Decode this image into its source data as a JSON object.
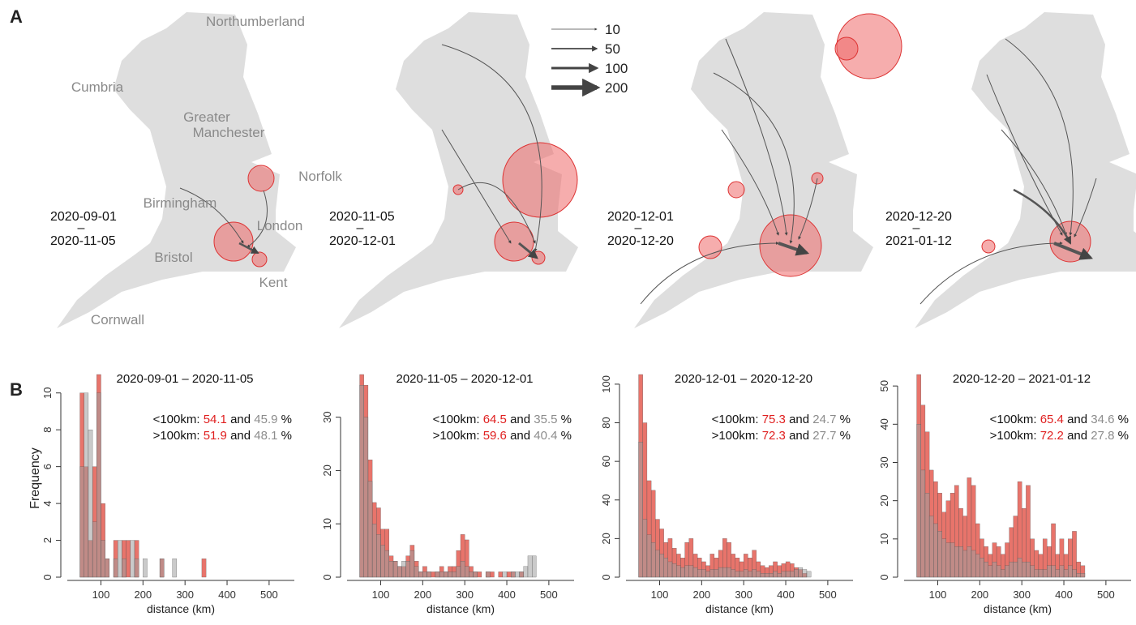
{
  "panel_labels": [
    "A",
    "B"
  ],
  "maps": {
    "regions": [
      "Northumberland",
      "Cumbria",
      "Greater",
      "Manchester",
      "Norfolk",
      "Birmingham",
      "London",
      "Bristol",
      "Kent",
      "Cornwall"
    ],
    "periods": [
      {
        "start": "2020-09-01",
        "end": "2020-11-05"
      },
      {
        "start": "2020-11-05",
        "end": "2020-12-01"
      },
      {
        "start": "2020-12-01",
        "end": "2020-12-20"
      },
      {
        "start": "2020-12-20",
        "end": "2021-01-12"
      }
    ],
    "separator": "–",
    "legend": [
      10,
      50,
      100,
      200
    ]
  },
  "y_label": "Frequency",
  "chart_data": [
    {
      "type": "histogram",
      "title": "2020-09-01 – 2020-11-05",
      "x_label": "distance (km)",
      "bins": [
        50,
        60,
        70,
        80,
        90,
        100,
        110,
        120,
        130,
        140,
        150,
        160,
        170,
        180,
        190,
        200,
        210,
        220,
        230,
        240,
        250,
        260,
        270,
        280,
        290,
        300,
        310,
        320,
        330,
        340,
        350,
        360,
        370,
        380,
        390,
        400,
        410,
        420,
        430,
        440,
        450,
        460,
        470
      ],
      "series": [
        {
          "color": "#e0453a",
          "values": [
            10,
            6,
            2,
            6,
            11,
            4,
            1,
            0,
            2,
            0,
            2,
            2,
            0,
            2,
            0,
            0,
            0,
            0,
            0,
            1,
            0,
            0,
            0,
            0,
            0,
            0,
            0,
            0,
            0,
            1,
            0,
            0,
            0,
            0,
            0,
            0,
            0,
            0,
            0,
            0,
            0,
            0
          ]
        },
        {
          "color": "#9e9e9e",
          "values": [
            6,
            10,
            8,
            3,
            10,
            2,
            1,
            0,
            1,
            2,
            1,
            0,
            2,
            1,
            0,
            1,
            0,
            0,
            0,
            1,
            0,
            0,
            1,
            0,
            0,
            0,
            0,
            0,
            0,
            0,
            0,
            0,
            0,
            0,
            0,
            0,
            0,
            0,
            0,
            0,
            0,
            0
          ]
        }
      ],
      "xlim": [
        20,
        560
      ],
      "xticks": [
        100,
        200,
        300,
        400,
        500
      ],
      "ylim": [
        0,
        11
      ],
      "yticks": [
        0,
        2,
        4,
        6,
        8,
        10
      ],
      "annotation_colors": [
        "#e02020",
        "#8c8c8c"
      ],
      "annotations": [
        {
          "prefix": "<100km:",
          "a": 54.1,
          "joiner": "and",
          "b": 45.9,
          "suffix": "%"
        },
        {
          "prefix": ">100km:",
          "a": 51.9,
          "joiner": "and",
          "b": 48.1,
          "suffix": "%"
        }
      ]
    },
    {
      "type": "histogram",
      "title": "2020-11-05 – 2020-12-01",
      "x_label": "distance (km)",
      "bins": [
        50,
        60,
        70,
        80,
        90,
        100,
        110,
        120,
        130,
        140,
        150,
        160,
        170,
        180,
        190,
        200,
        210,
        220,
        230,
        240,
        250,
        260,
        270,
        280,
        290,
        300,
        310,
        320,
        330,
        340,
        350,
        360,
        370,
        380,
        390,
        400,
        410,
        420,
        430,
        440,
        450,
        460,
        470
      ],
      "series": [
        {
          "color": "#e0453a",
          "values": [
            38,
            36,
            22,
            14,
            13,
            9,
            9,
            4,
            3,
            2,
            2,
            4,
            6,
            3,
            1,
            2,
            1,
            1,
            1,
            2,
            1,
            2,
            2,
            5,
            8,
            7,
            2,
            1,
            1,
            0,
            1,
            1,
            0,
            1,
            0,
            1,
            1,
            0,
            1,
            0,
            0,
            0
          ]
        },
        {
          "color": "#9e9e9e",
          "values": [
            36,
            30,
            18,
            10,
            8,
            6,
            5,
            3,
            3,
            2,
            3,
            3,
            5,
            2,
            1,
            1,
            1,
            0,
            1,
            1,
            1,
            1,
            1,
            2,
            3,
            2,
            1,
            1,
            0,
            0,
            1,
            0,
            0,
            0,
            1,
            0,
            1,
            1,
            1,
            2,
            4,
            4
          ]
        }
      ],
      "xlim": [
        20,
        560
      ],
      "xticks": [
        100,
        200,
        300,
        400,
        500
      ],
      "ylim": [
        0,
        38
      ],
      "yticks": [
        0,
        10,
        20,
        30
      ],
      "annotation_colors": [
        "#e02020",
        "#8c8c8c"
      ],
      "annotations": [
        {
          "prefix": "<100km:",
          "a": 64.5,
          "joiner": "and",
          "b": 35.5,
          "suffix": "%"
        },
        {
          "prefix": ">100km:",
          "a": 59.6,
          "joiner": "and",
          "b": 40.4,
          "suffix": "%"
        }
      ]
    },
    {
      "type": "histogram",
      "title": "2020-12-01 – 2020-12-20",
      "x_label": "distance (km)",
      "bins": [
        50,
        60,
        70,
        80,
        90,
        100,
        110,
        120,
        130,
        140,
        150,
        160,
        170,
        180,
        190,
        200,
        210,
        220,
        230,
        240,
        250,
        260,
        270,
        280,
        290,
        300,
        310,
        320,
        330,
        340,
        350,
        360,
        370,
        380,
        390,
        400,
        410,
        420,
        430,
        440,
        450,
        460,
        470
      ],
      "series": [
        {
          "color": "#e0453a",
          "values": [
            105,
            80,
            50,
            45,
            30,
            25,
            18,
            20,
            15,
            12,
            10,
            18,
            20,
            12,
            10,
            8,
            6,
            12,
            10,
            14,
            20,
            18,
            12,
            10,
            8,
            12,
            10,
            14,
            8,
            6,
            5,
            6,
            8,
            6,
            7,
            8,
            7,
            5,
            4,
            2,
            0,
            0
          ]
        },
        {
          "color": "#9e9e9e",
          "values": [
            70,
            30,
            22,
            18,
            14,
            12,
            10,
            8,
            7,
            6,
            5,
            6,
            6,
            5,
            4,
            4,
            3,
            4,
            4,
            5,
            5,
            5,
            4,
            3,
            3,
            4,
            3,
            4,
            3,
            2,
            2,
            2,
            3,
            2,
            3,
            3,
            3,
            4,
            5,
            4,
            3,
            0
          ]
        }
      ],
      "xlim": [
        20,
        560
      ],
      "xticks": [
        100,
        200,
        300,
        400,
        500
      ],
      "ylim": [
        0,
        105
      ],
      "yticks": [
        0,
        20,
        40,
        60,
        80,
        100
      ],
      "annotation_colors": [
        "#e02020",
        "#8c8c8c"
      ],
      "annotations": [
        {
          "prefix": "<100km:",
          "a": 75.3,
          "joiner": "and",
          "b": 24.7,
          "suffix": "%"
        },
        {
          "prefix": ">100km:",
          "a": 72.3,
          "joiner": "and",
          "b": 27.7,
          "suffix": "%"
        }
      ]
    },
    {
      "type": "histogram",
      "title": "2020-12-20 – 2021-01-12",
      "x_label": "distance (km)",
      "bins": [
        50,
        60,
        70,
        80,
        90,
        100,
        110,
        120,
        130,
        140,
        150,
        160,
        170,
        180,
        190,
        200,
        210,
        220,
        230,
        240,
        250,
        260,
        270,
        280,
        290,
        300,
        310,
        320,
        330,
        340,
        350,
        360,
        370,
        380,
        390,
        400,
        410,
        420,
        430,
        440,
        450,
        460,
        470
      ],
      "series": [
        {
          "color": "#e0453a",
          "values": [
            53,
            45,
            38,
            28,
            25,
            22,
            17,
            20,
            22,
            24,
            18,
            16,
            26,
            24,
            14,
            10,
            8,
            6,
            9,
            8,
            6,
            9,
            13,
            16,
            25,
            18,
            24,
            10,
            7,
            6,
            10,
            8,
            14,
            6,
            10,
            6,
            10,
            12,
            4,
            3,
            0,
            0
          ]
        },
        {
          "color": "#9e9e9e",
          "values": [
            40,
            28,
            22,
            16,
            14,
            12,
            10,
            9,
            9,
            8,
            8,
            7,
            8,
            7,
            6,
            5,
            4,
            3,
            4,
            3,
            2,
            3,
            4,
            4,
            5,
            4,
            4,
            3,
            2,
            2,
            2,
            3,
            3,
            2,
            3,
            2,
            3,
            2,
            1,
            1,
            0,
            0
          ]
        }
      ],
      "xlim": [
        20,
        560
      ],
      "xticks": [
        100,
        200,
        300,
        400,
        500
      ],
      "ylim": [
        0,
        53
      ],
      "yticks": [
        0,
        10,
        20,
        30,
        40,
        50
      ],
      "annotation_colors": [
        "#e02020",
        "#8c8c8c"
      ],
      "annotations": [
        {
          "prefix": "<100km:",
          "a": 65.4,
          "joiner": "and",
          "b": 34.6,
          "suffix": "%"
        },
        {
          "prefix": ">100km:",
          "a": 72.2,
          "joiner": "and",
          "b": 27.8,
          "suffix": "%"
        }
      ]
    }
  ]
}
